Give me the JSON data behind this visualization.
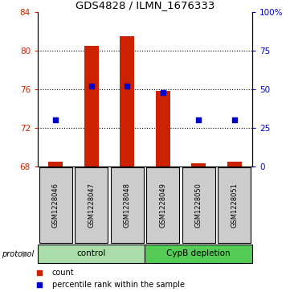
{
  "title": "GDS4828 / ILMN_1676333",
  "samples": [
    "GSM1228046",
    "GSM1228047",
    "GSM1228048",
    "GSM1228049",
    "GSM1228050",
    "GSM1228051"
  ],
  "count_values": [
    68.5,
    80.5,
    81.5,
    75.8,
    68.3,
    68.5
  ],
  "percentile_values": [
    30,
    52,
    52,
    48,
    30,
    30
  ],
  "ylim_left": [
    68,
    84
  ],
  "ylim_right": [
    0,
    100
  ],
  "yticks_left": [
    68,
    72,
    76,
    80,
    84
  ],
  "yticks_right": [
    0,
    25,
    50,
    75,
    100
  ],
  "ytick_labels_right": [
    "0",
    "25",
    "50",
    "75",
    "100%"
  ],
  "groups": [
    {
      "label": "control",
      "samples": [
        0,
        1,
        2
      ],
      "color": "#90EE90"
    },
    {
      "label": "CypB depletion",
      "samples": [
        3,
        4,
        5
      ],
      "color": "#5CD65C"
    }
  ],
  "bar_color": "#CC2200",
  "point_color": "#0000CC",
  "bar_bottom": 68,
  "sample_box_color": "#CCCCCC",
  "legend_count_color": "#CC2200",
  "legend_pct_color": "#0000CC",
  "control_color": "#AADDAA",
  "depletion_color": "#55CC55"
}
